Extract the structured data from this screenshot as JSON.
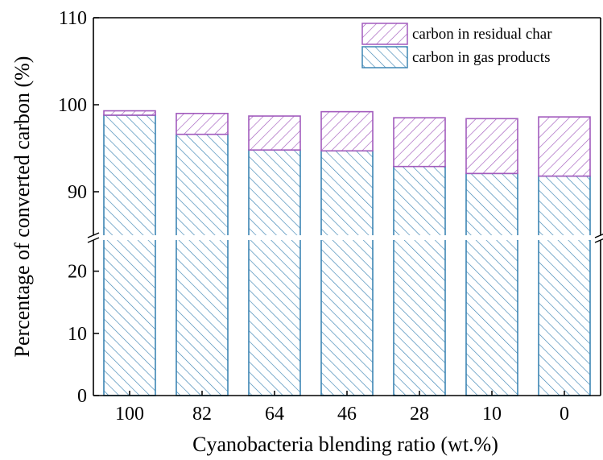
{
  "chart_data": {
    "type": "bar",
    "stacked": true,
    "broken_y_axis": true,
    "xlabel": "Cyanobacteria blending ratio (wt.%)",
    "ylabel": "Percentage of converted carbon (%)",
    "categories": [
      "100",
      "82",
      "64",
      "46",
      "28",
      "10",
      "0"
    ],
    "series": [
      {
        "name": "carbon in gas products",
        "values": [
          98.8,
          96.6,
          94.8,
          94.7,
          92.9,
          92.1,
          91.8
        ],
        "color": "#3d85b4",
        "hatch": "diagonal-forward"
      },
      {
        "name": "carbon in residual char",
        "values": [
          0.5,
          2.4,
          3.9,
          4.5,
          5.6,
          6.3,
          6.8
        ],
        "color": "#a25bbd",
        "hatch": "diagonal-backward"
      }
    ],
    "y_segments": [
      {
        "range": [
          0,
          25
        ],
        "ticks": [
          "0",
          "10",
          "20"
        ]
      },
      {
        "range": [
          85,
          110
        ],
        "ticks": [
          "90",
          "100",
          "110"
        ]
      }
    ],
    "legend_position": "top-right",
    "grid": false
  }
}
